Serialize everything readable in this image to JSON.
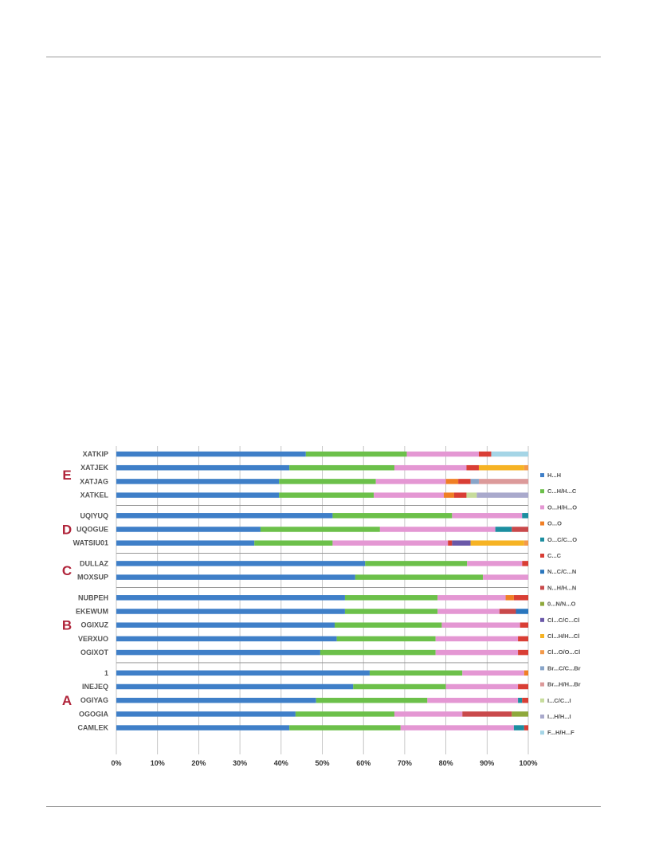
{
  "chart_data": {
    "type": "bar",
    "orientation": "horizontal",
    "stacked": "percent",
    "xlim": [
      0,
      100
    ],
    "xticks": [
      "0%",
      "10%",
      "20%",
      "30%",
      "40%",
      "50%",
      "60%",
      "70%",
      "80%",
      "90%",
      "100%"
    ],
    "grid": "vertical",
    "legend_position": "right",
    "series": [
      {
        "name": "H...H",
        "color": "#3f7fc8"
      },
      {
        "name": "C...H/H...C",
        "color": "#6cc04a"
      },
      {
        "name": "O...H/H...O",
        "color": "#e497d3"
      },
      {
        "name": "O...O",
        "color": "#f07f25"
      },
      {
        "name": "O...C/C...O",
        "color": "#1c8ea0"
      },
      {
        "name": "C...C",
        "color": "#d93e35"
      },
      {
        "name": "N...C/C...N",
        "color": "#2a76bd"
      },
      {
        "name": "N...H/H...N",
        "color": "#c9494b"
      },
      {
        "name": "0...N/N...O",
        "color": "#8ea83b"
      },
      {
        "name": "Cl...C/C...Cl",
        "color": "#6a58a8"
      },
      {
        "name": "Cl...H/H...Cl",
        "color": "#f6b324"
      },
      {
        "name": "Cl...O/O...Cl",
        "color": "#f39a4b"
      },
      {
        "name": "Br...C/C...Br",
        "color": "#88a5c9"
      },
      {
        "name": "Br...H/H...Br",
        "color": "#dc9a9a"
      },
      {
        "name": "I...C/C...I",
        "color": "#c7dc9c"
      },
      {
        "name": "I...H/H...I",
        "color": "#a9a9cc"
      },
      {
        "name": "F...H/H...F",
        "color": "#a5d5e6"
      }
    ],
    "groups": [
      {
        "label": "E",
        "rows": [
          {
            "name": "XATKIP",
            "segments": [
              [
                0,
                46
              ],
              [
                1,
                24.5
              ],
              [
                2,
                17.5
              ],
              [
                5,
                3
              ],
              [
                16,
                9
              ]
            ]
          },
          {
            "name": "XATJEK",
            "segments": [
              [
                0,
                42
              ],
              [
                1,
                25.5
              ],
              [
                2,
                17.5
              ],
              [
                5,
                3
              ],
              [
                10,
                11
              ],
              [
                11,
                1
              ]
            ]
          },
          {
            "name": "XATJAG",
            "segments": [
              [
                0,
                39.5
              ],
              [
                1,
                23.5
              ],
              [
                2,
                17
              ],
              [
                3,
                3
              ],
              [
                5,
                3
              ],
              [
                12,
                2
              ],
              [
                13,
                12
              ]
            ]
          },
          {
            "name": "XATKEL",
            "segments": [
              [
                0,
                39.5
              ],
              [
                1,
                23
              ],
              [
                2,
                17
              ],
              [
                3,
                2.5
              ],
              [
                5,
                3
              ],
              [
                14,
                2.5
              ],
              [
                15,
                12.5
              ]
            ]
          }
        ]
      },
      {
        "label": "D",
        "rows": [
          {
            "name": "UQIYUQ",
            "segments": [
              [
                0,
                52.5
              ],
              [
                1,
                29
              ],
              [
                2,
                17
              ],
              [
                4,
                1.5
              ]
            ]
          },
          {
            "name": "UQOGUE",
            "segments": [
              [
                0,
                35
              ],
              [
                1,
                29
              ],
              [
                2,
                28
              ],
              [
                4,
                4
              ],
              [
                7,
                4
              ]
            ]
          },
          {
            "name": "WATSIU01",
            "segments": [
              [
                0,
                33.5
              ],
              [
                1,
                19
              ],
              [
                2,
                28
              ],
              [
                5,
                1
              ],
              [
                9,
                4.5
              ],
              [
                10,
                13
              ],
              [
                11,
                1
              ]
            ]
          }
        ]
      },
      {
        "label": "C",
        "rows": [
          {
            "name": "DULLAZ",
            "segments": [
              [
                0,
                61
              ],
              [
                1,
                25
              ],
              [
                2,
                13.5
              ],
              [
                5,
                1.5
              ]
            ]
          },
          {
            "name": "MOXSUP",
            "segments": [
              [
                0,
                58
              ],
              [
                1,
                31
              ],
              [
                2,
                11
              ]
            ]
          }
        ]
      },
      {
        "label": "B",
        "rows": [
          {
            "name": "NUBPEH",
            "segments": [
              [
                0,
                55.5
              ],
              [
                1,
                22.5
              ],
              [
                2,
                16.5
              ],
              [
                3,
                2
              ],
              [
                5,
                3.5
              ]
            ]
          },
          {
            "name": "EKEWUM",
            "segments": [
              [
                0,
                55.5
              ],
              [
                1,
                22.5
              ],
              [
                2,
                15
              ],
              [
                7,
                4
              ],
              [
                6,
                3
              ]
            ]
          },
          {
            "name": "OGIXUZ",
            "segments": [
              [
                0,
                53
              ],
              [
                1,
                26
              ],
              [
                2,
                19
              ],
              [
                5,
                2
              ]
            ]
          },
          {
            "name": "VERXUO",
            "segments": [
              [
                0,
                53.5
              ],
              [
                1,
                24
              ],
              [
                2,
                20
              ],
              [
                5,
                2.5
              ]
            ]
          },
          {
            "name": "OGIXOT",
            "segments": [
              [
                0,
                49.5
              ],
              [
                1,
                28
              ],
              [
                2,
                20
              ],
              [
                5,
                2.5
              ]
            ]
          }
        ]
      },
      {
        "label": "A",
        "rows": [
          {
            "name": "1",
            "segments": [
              [
                0,
                61.5
              ],
              [
                1,
                22.5
              ],
              [
                2,
                15
              ],
              [
                3,
                1
              ]
            ]
          },
          {
            "name": "INEJEQ",
            "segments": [
              [
                0,
                57.5
              ],
              [
                1,
                22.5
              ],
              [
                2,
                17.5
              ],
              [
                5,
                2.5
              ]
            ]
          },
          {
            "name": "OGIYAG",
            "segments": [
              [
                0,
                48.5
              ],
              [
                1,
                27
              ],
              [
                2,
                22
              ],
              [
                4,
                1
              ],
              [
                5,
                1.5
              ]
            ]
          },
          {
            "name": "OGOGIA",
            "segments": [
              [
                0,
                43.5
              ],
              [
                1,
                24
              ],
              [
                2,
                16.5
              ],
              [
                7,
                12
              ],
              [
                8,
                4
              ]
            ]
          },
          {
            "name": "CAMLEK",
            "segments": [
              [
                0,
                42
              ],
              [
                1,
                27
              ],
              [
                2,
                27.5
              ],
              [
                4,
                2.5
              ],
              [
                5,
                1
              ]
            ]
          }
        ]
      }
    ]
  }
}
